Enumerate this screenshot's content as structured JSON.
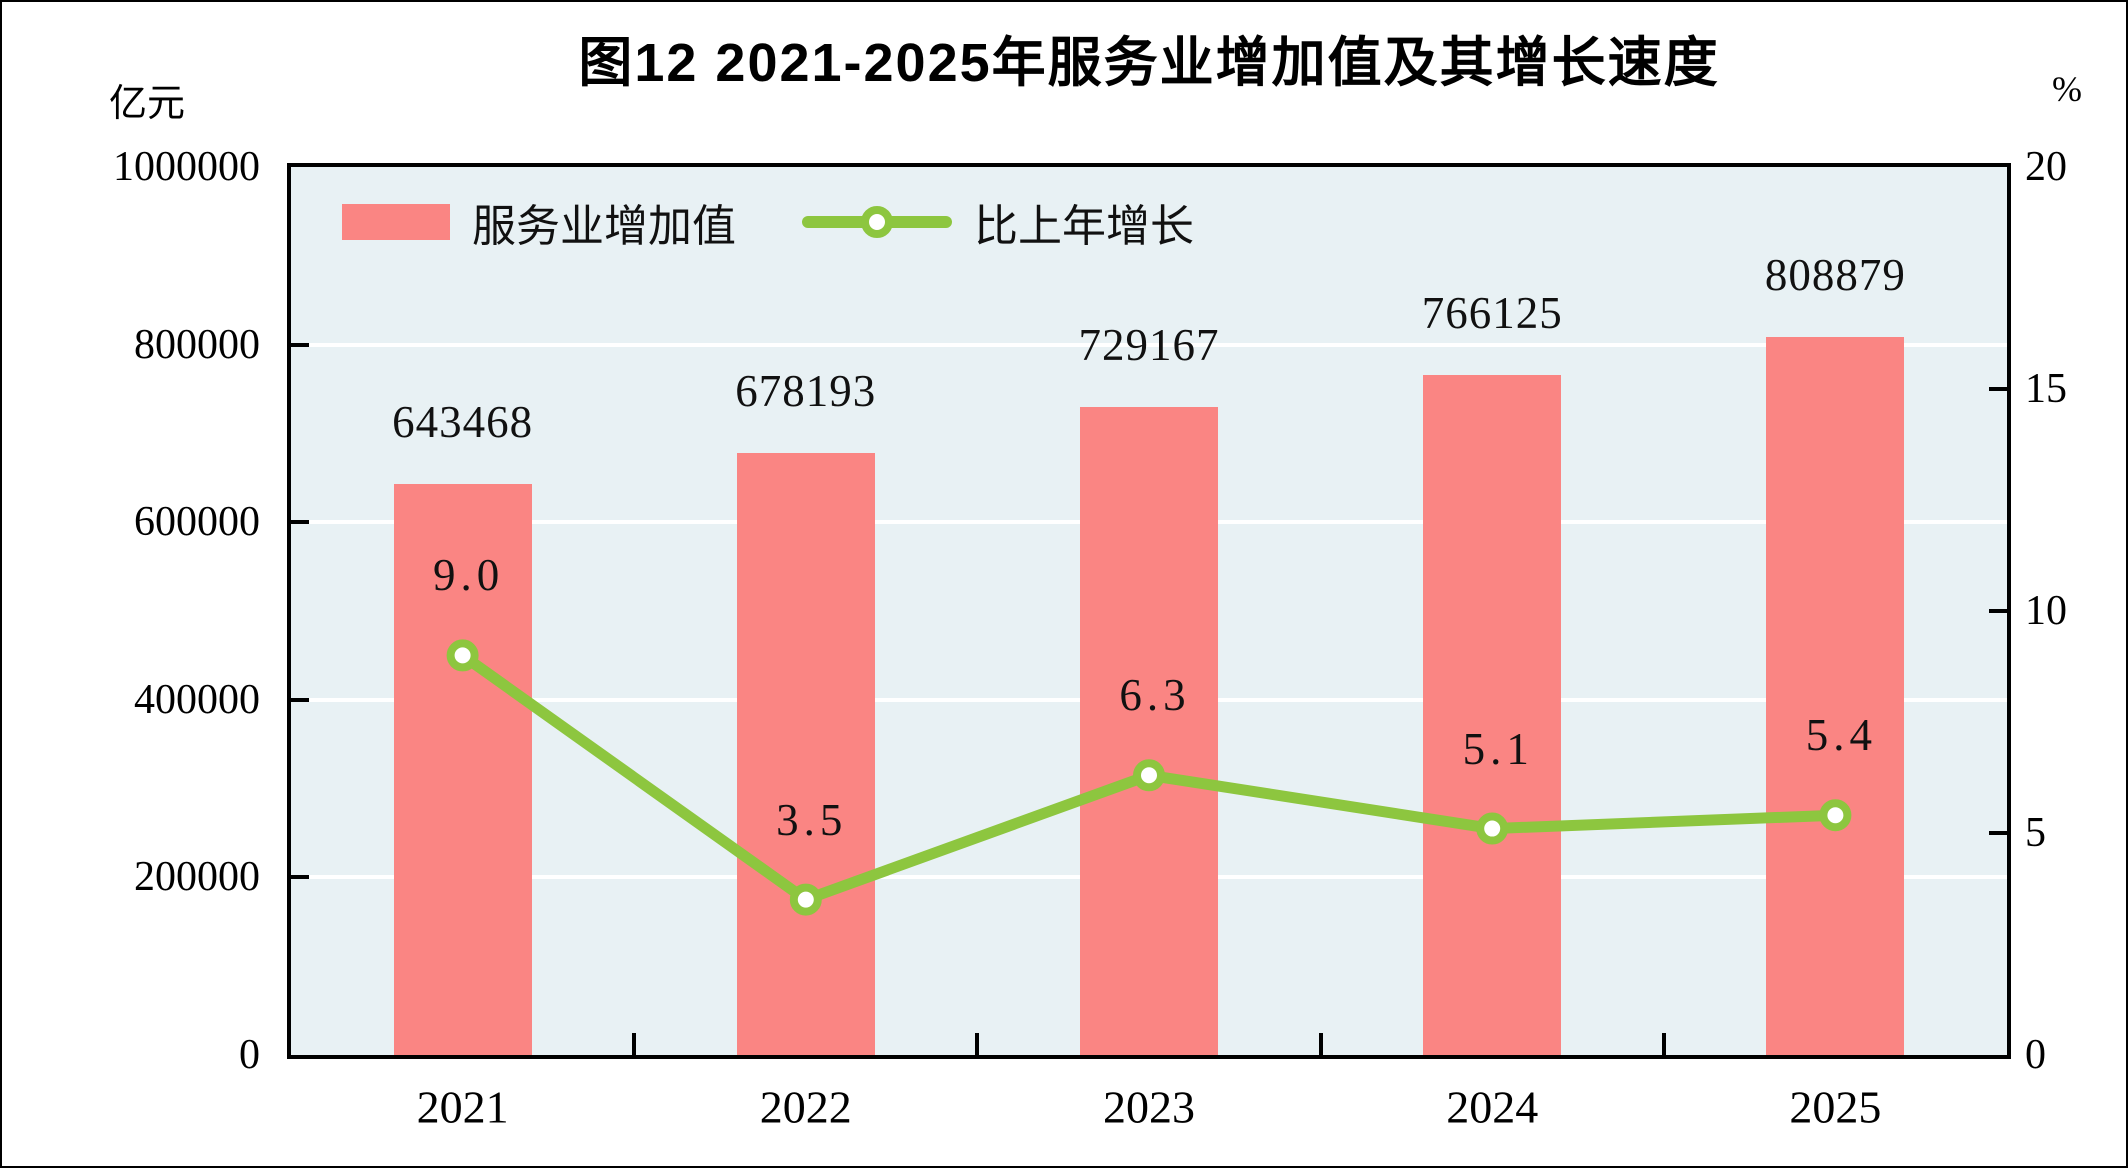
{
  "title": "图12  2021-2025年服务业增加值及其增长速度",
  "left_axis": {
    "unit": "亿元",
    "tick_labels": [
      "1000000",
      "800000",
      "600000",
      "400000",
      "200000",
      "0"
    ]
  },
  "right_axis": {
    "unit": "%",
    "tick_labels": [
      "20",
      "15",
      "10",
      "5",
      "0"
    ]
  },
  "legend": {
    "bar_label": "服务业增加值",
    "line_label": "比上年增长"
  },
  "colors": {
    "bar": "#fa8583",
    "line": "#8dc63f",
    "plot_bg": "#e8f1f4",
    "grid": "#ffffff",
    "axis": "#000000",
    "text": "#111111"
  },
  "chart_data": {
    "type": "bar+line",
    "categories": [
      "2021",
      "2022",
      "2023",
      "2024",
      "2025"
    ],
    "series": [
      {
        "name": "服务业增加值",
        "type": "bar",
        "axis": "left",
        "unit": "亿元",
        "values": [
          643468,
          678193,
          729167,
          766125,
          808879
        ],
        "labels": [
          "643468",
          "678193",
          "729167",
          "766125",
          "808879"
        ]
      },
      {
        "name": "比上年增长",
        "type": "line",
        "axis": "right",
        "unit": "%",
        "values": [
          9.0,
          3.5,
          6.3,
          5.1,
          5.4
        ],
        "labels": [
          "9.0",
          "3.5",
          "6.3",
          "5.1",
          "5.4"
        ]
      }
    ],
    "left_axis_range": [
      0,
      1000000
    ],
    "right_axis_range": [
      0,
      20
    ],
    "grid": "horizontal white lines at left-axis tick positions",
    "legend_position": "top-left inside plot area"
  }
}
